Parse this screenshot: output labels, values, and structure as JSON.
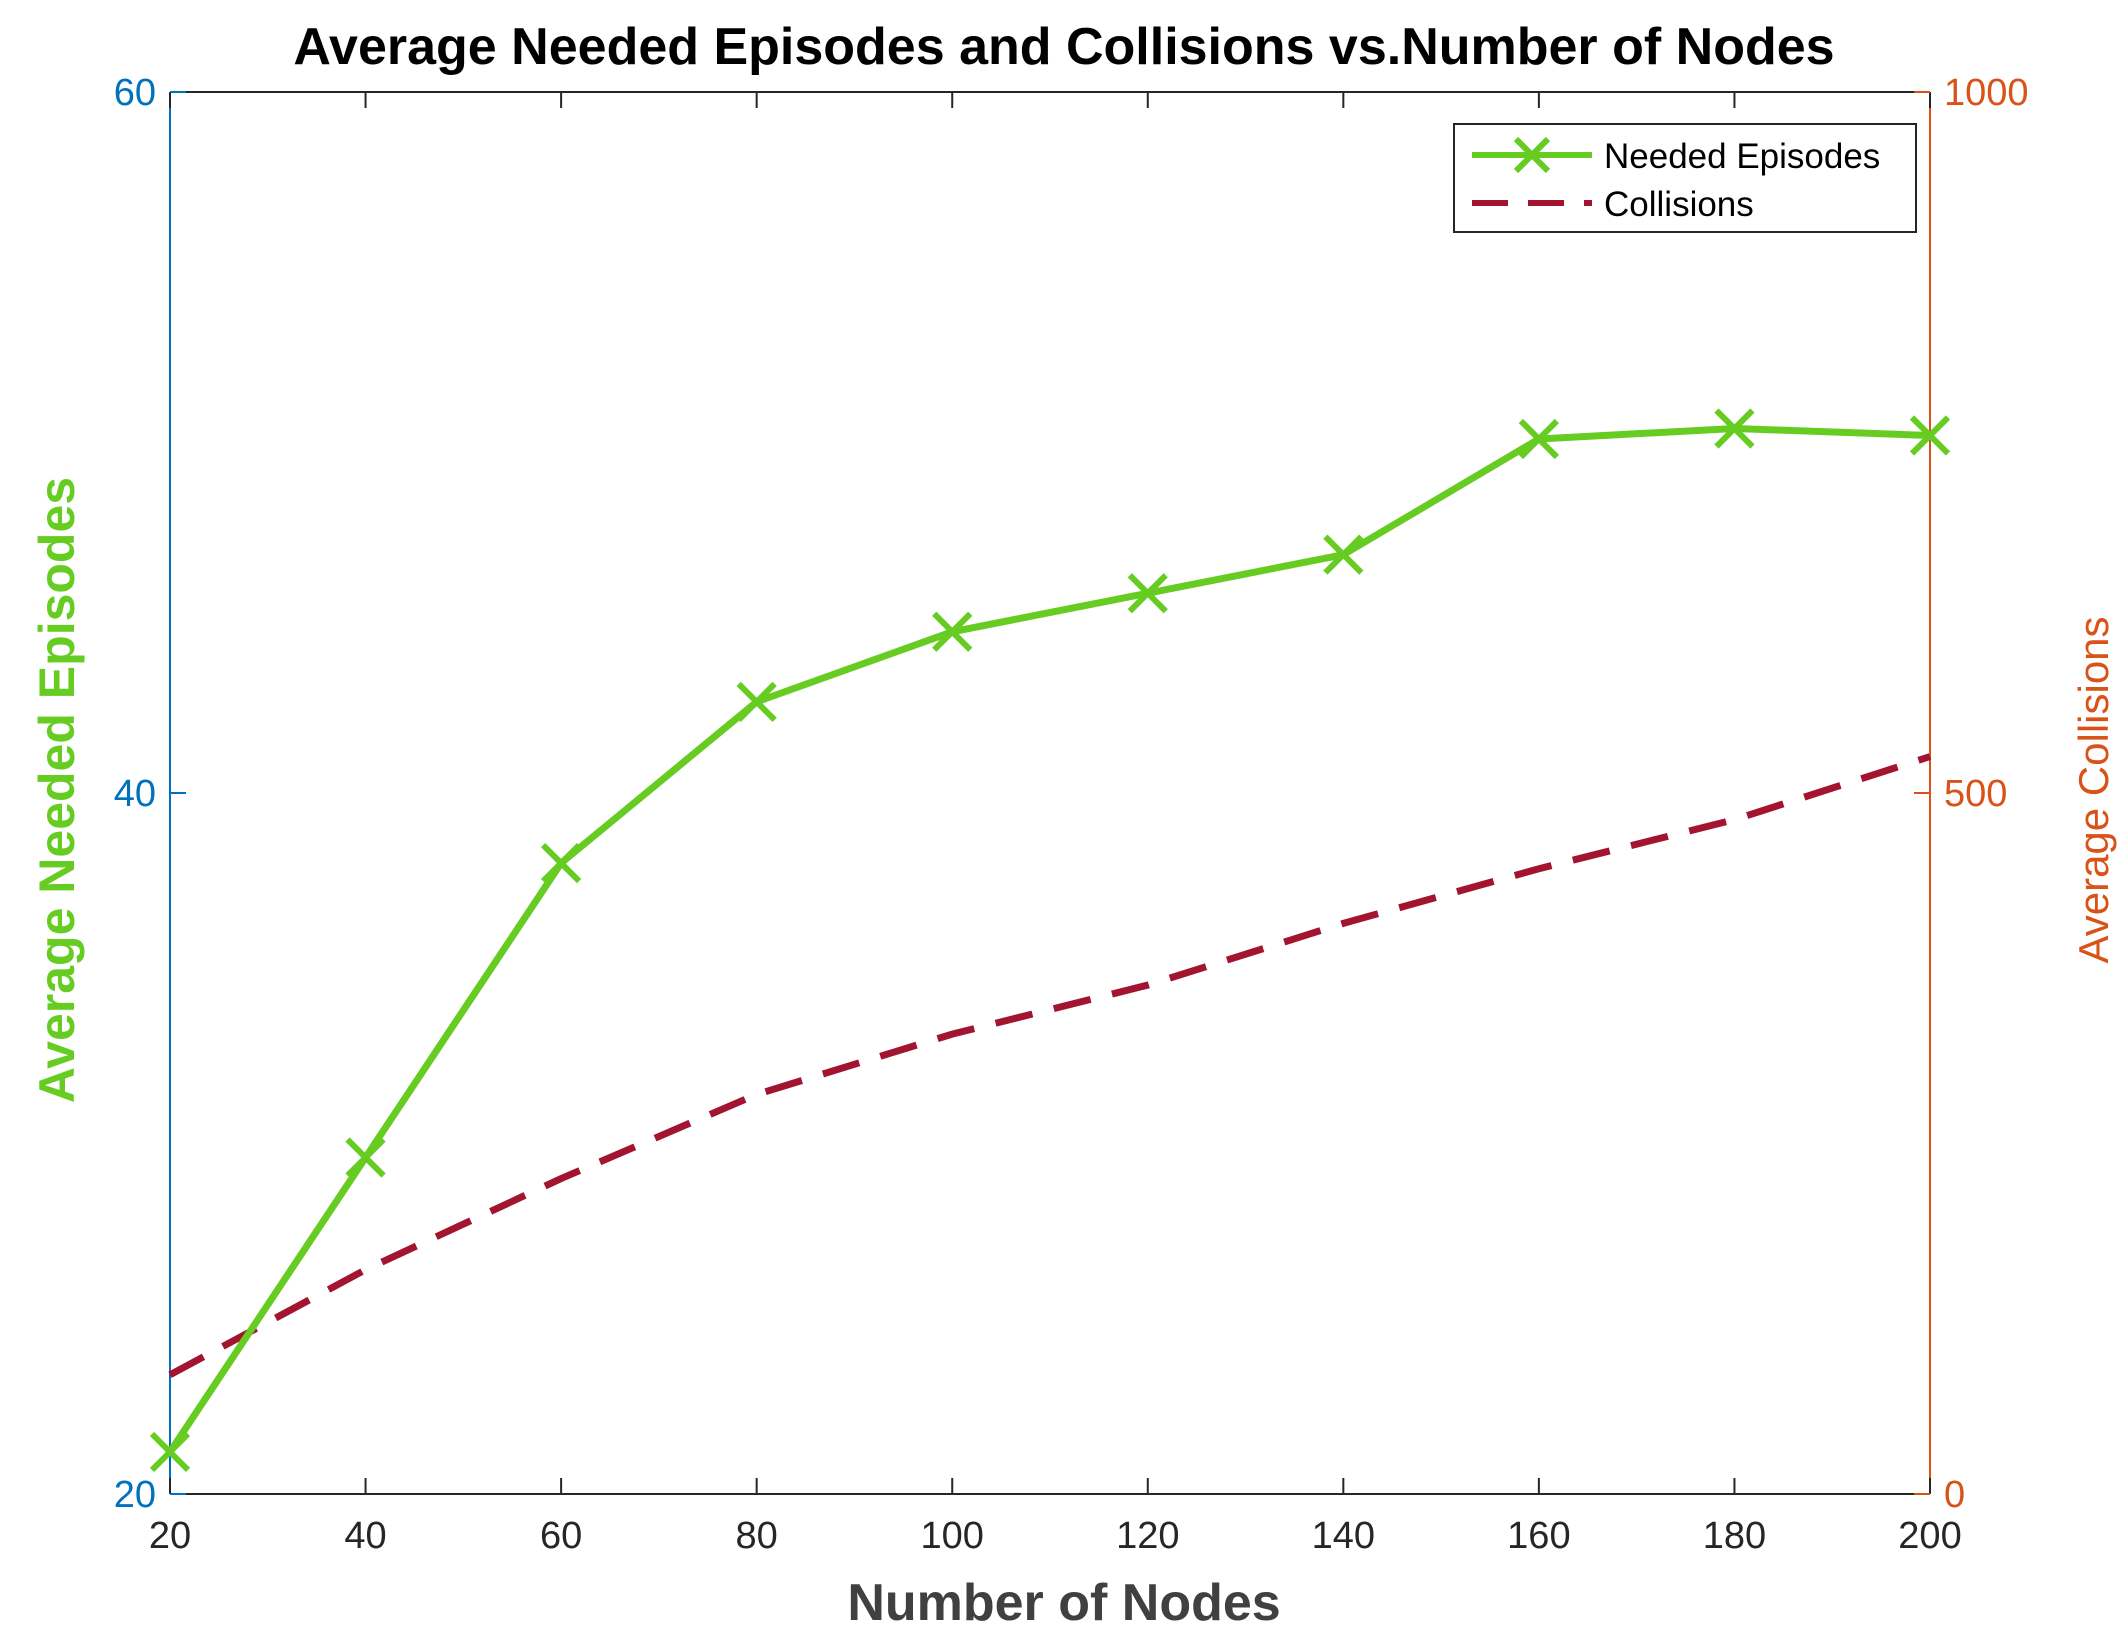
{
  "chart_data": {
    "type": "line",
    "title": "Average Needed Episodes and Collisions vs.Number of Nodes",
    "xlabel": "Number of Nodes",
    "ylabel_left": "Average Needed Episodes",
    "ylabel_right": "Average Collisions",
    "x": [
      20,
      40,
      60,
      80,
      100,
      120,
      140,
      160,
      180,
      200
    ],
    "xlim": [
      20,
      200
    ],
    "ylim_left": [
      20,
      60
    ],
    "ylim_right": [
      0,
      1000
    ],
    "x_ticks": [
      20,
      40,
      60,
      80,
      100,
      120,
      140,
      160,
      180,
      200
    ],
    "y_ticks_left": [
      20,
      40,
      60
    ],
    "y_ticks_right": [
      0,
      500,
      1000
    ],
    "grid": false,
    "legend_position": "top-right",
    "series": [
      {
        "name": "Needed Episodes",
        "axis": "left",
        "style": "solid-x-markers",
        "color": "#66cc22",
        "values": [
          21.2,
          29.6,
          38.0,
          42.6,
          44.6,
          45.7,
          46.8,
          50.1,
          50.4,
          50.2
        ]
      },
      {
        "name": "Collisions",
        "axis": "right",
        "style": "dashed",
        "color": "#a2142f",
        "values": [
          85,
          160,
          225,
          285,
          328,
          363,
          407,
          446,
          481,
          526
        ]
      }
    ]
  }
}
